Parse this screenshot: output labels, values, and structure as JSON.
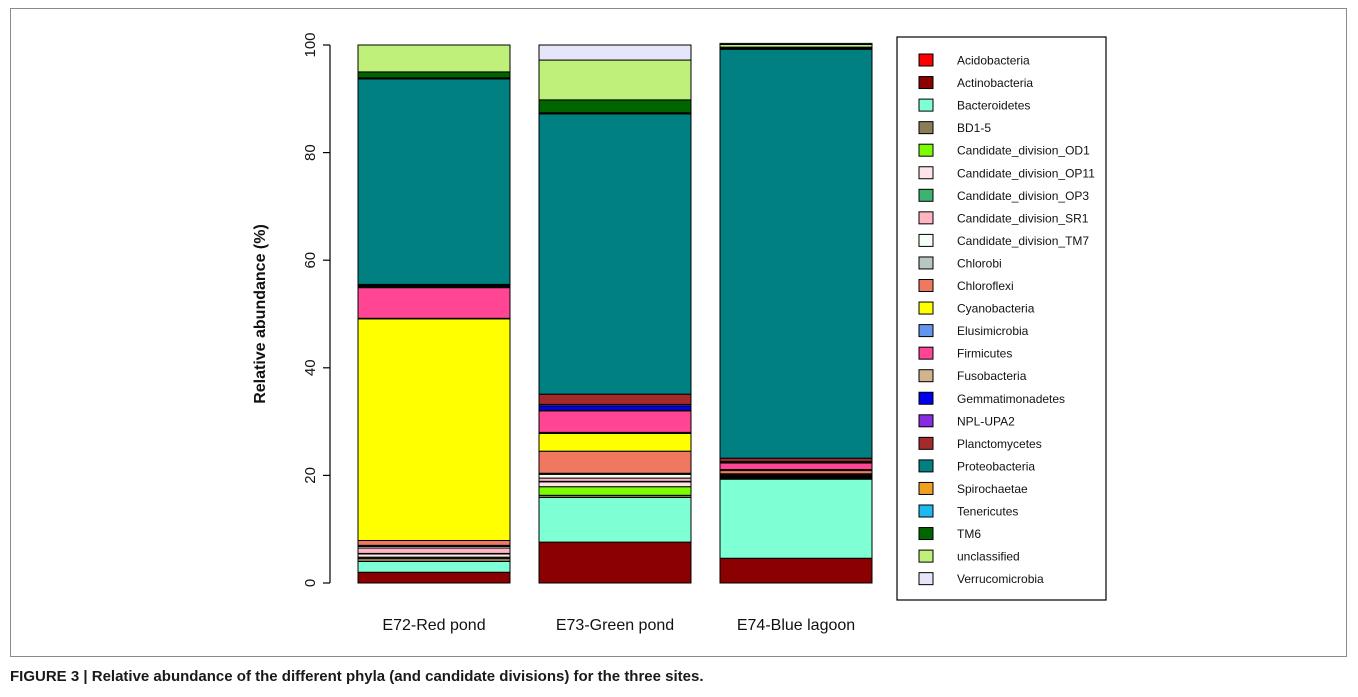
{
  "caption": {
    "label": "FIGURE 3",
    "separator": " | ",
    "text": "Relative abundance of the different phyla (and candidate divisions) for the three sites."
  },
  "chart_data": {
    "type": "bar",
    "stacked": true,
    "title": "",
    "xlabel": "",
    "ylabel": "Relative abundance (%)",
    "ylim": [
      0,
      100
    ],
    "yticks": [
      0,
      20,
      40,
      60,
      80,
      100
    ],
    "grid": false,
    "legend_position": "right",
    "categories": [
      "E72-Red pond",
      "E73-Green pond",
      "E74-Blue lagoon"
    ],
    "series": [
      {
        "name": "Acidobacteria",
        "color": "#ff0000",
        "values": [
          0.0,
          0.0,
          0.0
        ]
      },
      {
        "name": "Actinobacteria",
        "color": "#8b0000",
        "values": [
          2.0,
          7.6,
          4.6
        ]
      },
      {
        "name": "Bacteroidetes",
        "color": "#7fffd4",
        "values": [
          2.0,
          8.3,
          14.7
        ]
      },
      {
        "name": "BD1-5",
        "color": "#8b7d55",
        "values": [
          0.6,
          0.4,
          0.2
        ]
      },
      {
        "name": "Candidate_division_OD1",
        "color": "#7cfc00",
        "values": [
          0.2,
          1.6,
          0.1
        ]
      },
      {
        "name": "Candidate_division_OP11",
        "color": "#fce4e8",
        "values": [
          0.6,
          0.9,
          0.1
        ]
      },
      {
        "name": "Candidate_division_OP3",
        "color": "#3cb371",
        "values": [
          0.1,
          0.1,
          0.1
        ]
      },
      {
        "name": "Candidate_division_SR1",
        "color": "#ffb6c1",
        "values": [
          1.0,
          0.6,
          0.1
        ]
      },
      {
        "name": "Candidate_division_TM7",
        "color": "#f5fff5",
        "values": [
          0.3,
          0.7,
          0.2
        ]
      },
      {
        "name": "Chlorobi",
        "color": "#b8c8c0",
        "values": [
          0.2,
          0.2,
          0.2
        ]
      },
      {
        "name": "Chloroflexi",
        "color": "#f07860",
        "values": [
          0.9,
          4.1,
          0.6
        ]
      },
      {
        "name": "Cyanobacteria",
        "color": "#ffff00",
        "values": [
          41.2,
          3.3,
          0.1
        ]
      },
      {
        "name": "Elusimicrobia",
        "color": "#6495ed",
        "values": [
          0.1,
          0.2,
          0.1
        ]
      },
      {
        "name": "Firmicutes",
        "color": "#ff4593",
        "values": [
          5.7,
          4.0,
          1.2
        ]
      },
      {
        "name": "Fusobacteria",
        "color": "#d2b48c",
        "values": [
          0.1,
          0.1,
          0.1
        ]
      },
      {
        "name": "Gemmatimonadetes",
        "color": "#0000ee",
        "values": [
          0.2,
          0.8,
          0.1
        ]
      },
      {
        "name": "NPL-UPA2",
        "color": "#8a2be2",
        "values": [
          0.1,
          0.3,
          0.1
        ]
      },
      {
        "name": "Planctomycetes",
        "color": "#a52a2a",
        "values": [
          0.2,
          1.9,
          0.6
        ]
      },
      {
        "name": "Proteobacteria",
        "color": "#008080",
        "values": [
          38.2,
          52.1,
          76.0
        ]
      },
      {
        "name": "Spirochaetae",
        "color": "#f0a020",
        "values": [
          0.1,
          0.1,
          0.1
        ]
      },
      {
        "name": "Tenericutes",
        "color": "#20b8f0",
        "values": [
          0.1,
          0.1,
          0.1
        ]
      },
      {
        "name": "TM6",
        "color": "#006400",
        "values": [
          1.1,
          2.4,
          0.2
        ]
      },
      {
        "name": "unclassified",
        "color": "#bef07a",
        "values": [
          5.0,
          7.4,
          0.5
        ]
      },
      {
        "name": "Verrucomicrobia",
        "color": "#e6e6fa",
        "values": [
          0.0,
          2.8,
          0.2
        ]
      }
    ]
  }
}
